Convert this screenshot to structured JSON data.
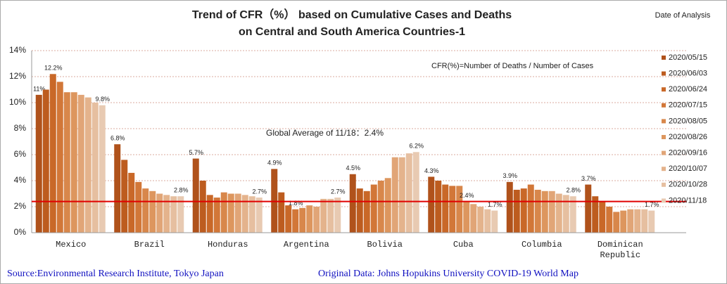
{
  "chart_data": {
    "type": "bar",
    "title": [
      "Trend of CFR（%） based on Cumulative Cases and Deaths",
      "on Central and South America Countries-1"
    ],
    "legend_title": "Date of Analysis",
    "annotation": "CFR(%)=Number of  Deaths / Number of Cases",
    "reference_line": {
      "value": 2.4,
      "label": "Global Average of 11/18：2.4%",
      "color": "#e00000"
    },
    "sources": [
      "Source:Environmental Research Institute, Tokyo Japan",
      "Original Data: Johns Hopukins University COVID-19 World Map"
    ],
    "categories": [
      "Mexico",
      "Brazil",
      "Honduras",
      "Argentina",
      "Bolivia",
      "Cuba",
      "Columbia",
      "Dominican\nRepublic"
    ],
    "ylim": [
      0,
      14
    ],
    "yticks": [
      {
        "value": 0,
        "label": "0%"
      },
      {
        "value": 2,
        "label": "2%"
      },
      {
        "value": 4,
        "label": "4%"
      },
      {
        "value": 6,
        "label": "6%"
      },
      {
        "value": 8,
        "label": "8%"
      },
      {
        "value": 10,
        "label": "10%"
      },
      {
        "value": 12,
        "label": "12%"
      },
      {
        "value": 14,
        "label": "14%"
      }
    ],
    "grid": true,
    "legend": "right",
    "series": [
      {
        "name": "2020/05/15",
        "color": "#b0521b",
        "values": [
          10.6,
          6.8,
          5.7,
          4.9,
          4.5,
          4.3,
          3.9,
          3.7
        ],
        "value_labels": [
          "11%",
          "6.8%",
          "5.7%",
          "4.9%",
          "4.5%",
          "4.3%",
          "3.9%",
          "3.7%"
        ]
      },
      {
        "name": "2020/06/03",
        "color": "#bd5c1f",
        "values": [
          11.0,
          5.6,
          4.0,
          3.1,
          3.4,
          4.0,
          3.3,
          2.8
        ]
      },
      {
        "name": "2020/06/24",
        "color": "#c96828",
        "values": [
          12.2,
          4.6,
          2.9,
          2.1,
          3.2,
          3.7,
          3.4,
          2.4
        ],
        "value_labels": [
          "12.2%",
          null,
          null,
          null,
          null,
          null,
          null,
          null
        ]
      },
      {
        "name": "2020/07/15",
        "color": "#d27738",
        "values": [
          11.6,
          3.9,
          2.7,
          1.8,
          3.7,
          3.6,
          3.7,
          2.0
        ],
        "value_labels": [
          null,
          null,
          null,
          "1.8%",
          null,
          null,
          null,
          null
        ]
      },
      {
        "name": "2020/08/05",
        "color": "#d8874b",
        "values": [
          10.8,
          3.4,
          3.1,
          1.9,
          4.0,
          3.6,
          3.3,
          1.6
        ]
      },
      {
        "name": "2020/08/26",
        "color": "#dd965e",
        "values": [
          10.8,
          3.2,
          3.0,
          2.1,
          4.2,
          2.4,
          3.2,
          1.7
        ],
        "value_labels": [
          null,
          null,
          null,
          null,
          null,
          "2.4%",
          null,
          null
        ]
      },
      {
        "name": "2020/09/16",
        "color": "#e1a577",
        "values": [
          10.6,
          3.0,
          3.0,
          2.0,
          5.8,
          2.2,
          3.2,
          1.8
        ]
      },
      {
        "name": "2020/10/07",
        "color": "#e4b38c",
        "values": [
          10.4,
          2.9,
          2.9,
          2.6,
          5.8,
          2.0,
          3.0,
          1.8
        ]
      },
      {
        "name": "2020/10/28",
        "color": "#e6bfa0",
        "values": [
          10.0,
          2.8,
          2.8,
          2.6,
          6.1,
          1.8,
          2.9,
          1.8
        ]
      },
      {
        "name": "2020/11/18",
        "color": "#e8cab2",
        "values": [
          9.8,
          2.8,
          2.7,
          2.7,
          6.2,
          1.7,
          2.8,
          1.7
        ],
        "value_labels": [
          "9.8%",
          "2.8%",
          "2.7%",
          "2.7%",
          "6.2%",
          "1.7%",
          "2.8%",
          "1.7%"
        ]
      }
    ]
  }
}
